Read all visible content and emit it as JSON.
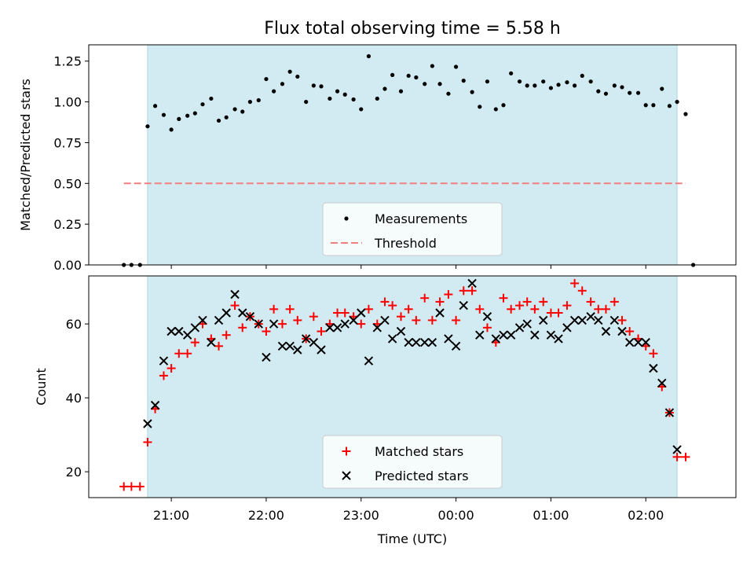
{
  "chart_data": {
    "title": "Flux total observing time = 5.58 h",
    "x_axis": {
      "label": "Time (UTC)",
      "unit": "hours since 20:00 UTC",
      "range": [
        0.13,
        6.95
      ],
      "ticks": [
        {
          "value": 1,
          "label": "21:00"
        },
        {
          "value": 2,
          "label": "22:00"
        },
        {
          "value": 3,
          "label": "23:00"
        },
        {
          "value": 4,
          "label": "00:00"
        },
        {
          "value": 5,
          "label": "01:00"
        },
        {
          "value": 6,
          "label": "02:00"
        }
      ]
    },
    "observing_window": {
      "start": 0.75,
      "end": 6.33,
      "color": "#add8e6"
    },
    "panels": [
      {
        "type": "scatter",
        "ylabel": "Matched/Predicted stars",
        "ylim": [
          0,
          1.35
        ],
        "yticks": [
          {
            "value": 0,
            "label": "0.00"
          },
          {
            "value": 0.25,
            "label": "0.25"
          },
          {
            "value": 0.5,
            "label": "0.50"
          },
          {
            "value": 0.75,
            "label": "0.75"
          },
          {
            "value": 1.0,
            "label": "1.00"
          },
          {
            "value": 1.25,
            "label": "1.25"
          }
        ],
        "threshold": {
          "name": "Threshold",
          "value": 0.5,
          "x_start": 0.5,
          "x_end": 6.42,
          "color": "#f08080"
        },
        "legend": {
          "location": "lower center",
          "entries": [
            "Measurements",
            "Threshold"
          ]
        },
        "series": [
          {
            "name": "Measurements",
            "color": "#000000",
            "marker": "dot",
            "points": [
              [
                0.5,
                0
              ],
              [
                0.58,
                0
              ],
              [
                0.67,
                0
              ],
              [
                0.75,
                0.85
              ],
              [
                0.83,
                0.975
              ],
              [
                0.92,
                0.92
              ],
              [
                1.0,
                0.83
              ],
              [
                1.08,
                0.895
              ],
              [
                1.17,
                0.915
              ],
              [
                1.25,
                0.93
              ],
              [
                1.33,
                0.985
              ],
              [
                1.42,
                1.02
              ],
              [
                1.5,
                0.885
              ],
              [
                1.58,
                0.905
              ],
              [
                1.67,
                0.955
              ],
              [
                1.75,
                0.94
              ],
              [
                1.83,
                1.0
              ],
              [
                1.92,
                1.01
              ],
              [
                2.0,
                1.14
              ],
              [
                2.08,
                1.065
              ],
              [
                2.17,
                1.11
              ],
              [
                2.25,
                1.185
              ],
              [
                2.33,
                1.155
              ],
              [
                2.42,
                1.0
              ],
              [
                2.5,
                1.1
              ],
              [
                2.58,
                1.095
              ],
              [
                2.67,
                1.02
              ],
              [
                2.75,
                1.065
              ],
              [
                2.83,
                1.045
              ],
              [
                2.92,
                1.015
              ],
              [
                3.0,
                0.955
              ],
              [
                3.08,
                1.28
              ],
              [
                3.17,
                1.02
              ],
              [
                3.25,
                1.08
              ],
              [
                3.33,
                1.165
              ],
              [
                3.42,
                1.065
              ],
              [
                3.5,
                1.16
              ],
              [
                3.58,
                1.15
              ],
              [
                3.67,
                1.11
              ],
              [
                3.75,
                1.22
              ],
              [
                3.83,
                1.11
              ],
              [
                3.92,
                1.05
              ],
              [
                4.0,
                1.215
              ],
              [
                4.08,
                1.13
              ],
              [
                4.17,
                1.06
              ],
              [
                4.25,
                0.97
              ],
              [
                4.33,
                1.125
              ],
              [
                4.42,
                0.955
              ],
              [
                4.5,
                0.98
              ],
              [
                4.58,
                1.175
              ],
              [
                4.67,
                1.125
              ],
              [
                4.75,
                1.1
              ],
              [
                4.83,
                1.1
              ],
              [
                4.92,
                1.125
              ],
              [
                5.0,
                1.085
              ],
              [
                5.08,
                1.105
              ],
              [
                5.17,
                1.12
              ],
              [
                5.25,
                1.1
              ],
              [
                5.33,
                1.16
              ],
              [
                5.42,
                1.125
              ],
              [
                5.5,
                1.065
              ],
              [
                5.58,
                1.05
              ],
              [
                5.67,
                1.1
              ],
              [
                5.75,
                1.09
              ],
              [
                5.83,
                1.055
              ],
              [
                5.92,
                1.055
              ],
              [
                6.0,
                0.98
              ],
              [
                6.08,
                0.98
              ],
              [
                6.17,
                1.08
              ],
              [
                6.25,
                0.975
              ],
              [
                6.33,
                1.0
              ],
              [
                6.42,
                0.925
              ],
              [
                6.5,
                0
              ]
            ]
          }
        ]
      },
      {
        "type": "scatter",
        "ylabel": "Count",
        "ylim": [
          13,
          73
        ],
        "yticks": [
          {
            "value": 20,
            "label": "20"
          },
          {
            "value": 40,
            "label": "40"
          },
          {
            "value": 60,
            "label": "60"
          }
        ],
        "legend": {
          "location": "lower center",
          "entries": [
            "Matched stars",
            "Predicted stars"
          ]
        },
        "series": [
          {
            "name": "Matched stars",
            "color": "#ff0000",
            "marker": "plus",
            "points": [
              [
                0.5,
                16
              ],
              [
                0.58,
                16
              ],
              [
                0.67,
                16
              ],
              [
                0.75,
                28
              ],
              [
                0.83,
                37
              ],
              [
                0.92,
                46
              ],
              [
                1.0,
                48
              ],
              [
                1.08,
                52
              ],
              [
                1.17,
                52
              ],
              [
                1.25,
                55
              ],
              [
                1.33,
                60
              ],
              [
                1.42,
                56
              ],
              [
                1.5,
                54
              ],
              [
                1.58,
                57
              ],
              [
                1.67,
                65
              ],
              [
                1.75,
                59
              ],
              [
                1.83,
                62
              ],
              [
                1.92,
                60
              ],
              [
                2.0,
                58
              ],
              [
                2.08,
                64
              ],
              [
                2.17,
                60
              ],
              [
                2.25,
                64
              ],
              [
                2.33,
                61
              ],
              [
                2.42,
                56
              ],
              [
                2.5,
                62
              ],
              [
                2.58,
                58
              ],
              [
                2.67,
                60
              ],
              [
                2.75,
                63
              ],
              [
                2.83,
                63
              ],
              [
                2.92,
                62
              ],
              [
                3.0,
                60
              ],
              [
                3.08,
                64
              ],
              [
                3.17,
                60
              ],
              [
                3.25,
                66
              ],
              [
                3.33,
                65
              ],
              [
                3.42,
                62
              ],
              [
                3.5,
                64
              ],
              [
                3.58,
                61
              ],
              [
                3.67,
                67
              ],
              [
                3.75,
                61
              ],
              [
                3.83,
                66
              ],
              [
                3.92,
                68
              ],
              [
                4.0,
                61
              ],
              [
                4.08,
                69
              ],
              [
                4.17,
                69
              ],
              [
                4.25,
                64
              ],
              [
                4.33,
                59
              ],
              [
                4.42,
                55
              ],
              [
                4.5,
                67
              ],
              [
                4.58,
                64
              ],
              [
                4.67,
                65
              ],
              [
                4.75,
                66
              ],
              [
                4.83,
                64
              ],
              [
                4.92,
                66
              ],
              [
                5.0,
                63
              ],
              [
                5.08,
                63
              ],
              [
                5.17,
                65
              ],
              [
                5.25,
                71
              ],
              [
                5.33,
                69
              ],
              [
                5.42,
                66
              ],
              [
                5.5,
                64
              ],
              [
                5.58,
                64
              ],
              [
                5.67,
                66
              ],
              [
                5.75,
                61
              ],
              [
                5.83,
                58
              ],
              [
                5.92,
                56
              ],
              [
                6.0,
                54
              ],
              [
                6.08,
                52
              ],
              [
                6.17,
                43
              ],
              [
                6.25,
                36
              ],
              [
                6.33,
                24
              ],
              [
                6.42,
                24
              ]
            ]
          },
          {
            "name": "Predicted stars",
            "color": "#000000",
            "marker": "x",
            "points": [
              [
                0.75,
                33
              ],
              [
                0.83,
                38
              ],
              [
                0.92,
                50
              ],
              [
                1.0,
                58
              ],
              [
                1.08,
                58
              ],
              [
                1.17,
                57
              ],
              [
                1.25,
                59
              ],
              [
                1.33,
                61
              ],
              [
                1.42,
                55
              ],
              [
                1.5,
                61
              ],
              [
                1.58,
                63
              ],
              [
                1.67,
                68
              ],
              [
                1.75,
                63
              ],
              [
                1.83,
                62
              ],
              [
                1.92,
                60
              ],
              [
                2.0,
                51
              ],
              [
                2.08,
                60
              ],
              [
                2.17,
                54
              ],
              [
                2.25,
                54
              ],
              [
                2.33,
                53
              ],
              [
                2.42,
                56
              ],
              [
                2.5,
                55
              ],
              [
                2.58,
                53
              ],
              [
                2.67,
                59
              ],
              [
                2.75,
                59
              ],
              [
                2.83,
                60
              ],
              [
                2.92,
                61
              ],
              [
                3.0,
                63
              ],
              [
                3.08,
                50
              ],
              [
                3.17,
                59
              ],
              [
                3.25,
                61
              ],
              [
                3.33,
                56
              ],
              [
                3.42,
                58
              ],
              [
                3.5,
                55
              ],
              [
                3.58,
                55
              ],
              [
                3.67,
                55
              ],
              [
                3.75,
                55
              ],
              [
                3.83,
                63
              ],
              [
                3.92,
                56
              ],
              [
                4.0,
                54
              ],
              [
                4.08,
                65
              ],
              [
                4.17,
                71
              ],
              [
                4.25,
                57
              ],
              [
                4.33,
                62
              ],
              [
                4.42,
                56
              ],
              [
                4.5,
                57
              ],
              [
                4.58,
                57
              ],
              [
                4.67,
                59
              ],
              [
                4.75,
                60
              ],
              [
                4.83,
                57
              ],
              [
                4.92,
                61
              ],
              [
                5.0,
                57
              ],
              [
                5.08,
                56
              ],
              [
                5.17,
                59
              ],
              [
                5.25,
                61
              ],
              [
                5.33,
                61
              ],
              [
                5.42,
                62
              ],
              [
                5.5,
                61
              ],
              [
                5.58,
                58
              ],
              [
                5.67,
                61
              ],
              [
                5.75,
                58
              ],
              [
                5.83,
                55
              ],
              [
                5.92,
                55
              ],
              [
                6.0,
                55
              ],
              [
                6.08,
                48
              ],
              [
                6.17,
                44
              ],
              [
                6.25,
                36
              ],
              [
                6.33,
                26
              ]
            ]
          }
        ]
      }
    ]
  }
}
